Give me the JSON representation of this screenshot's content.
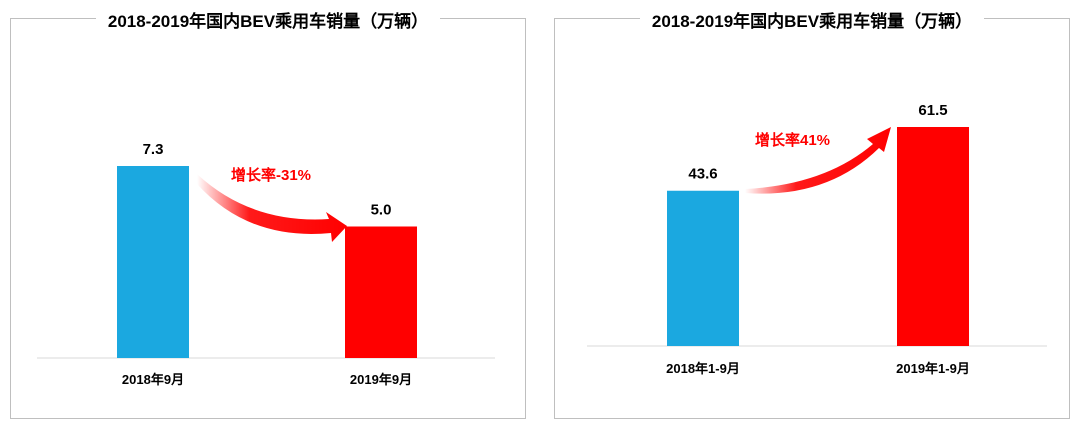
{
  "chart_data": [
    {
      "type": "bar",
      "title": "2018-2019年国内BEV乘用车销量（万辆）",
      "categories": [
        "2018年9月",
        "2019年9月"
      ],
      "values": [
        7.3,
        5.0
      ],
      "value_labels": [
        "7.3",
        "5.0"
      ],
      "colors": [
        "#1ba8e0",
        "#ff0000"
      ],
      "annotation": "增长率-31%",
      "ylim": [
        0,
        7.3
      ]
    },
    {
      "type": "bar",
      "title": "2018-2019年国内BEV乘用车销量（万辆）",
      "categories": [
        "2018年1-9月",
        "2019年1-9月"
      ],
      "values": [
        43.6,
        61.5
      ],
      "value_labels": [
        "43.6",
        "61.5"
      ],
      "colors": [
        "#1ba8e0",
        "#ff0000"
      ],
      "annotation": "增长率41%",
      "ylim": [
        0,
        61.5
      ]
    }
  ]
}
